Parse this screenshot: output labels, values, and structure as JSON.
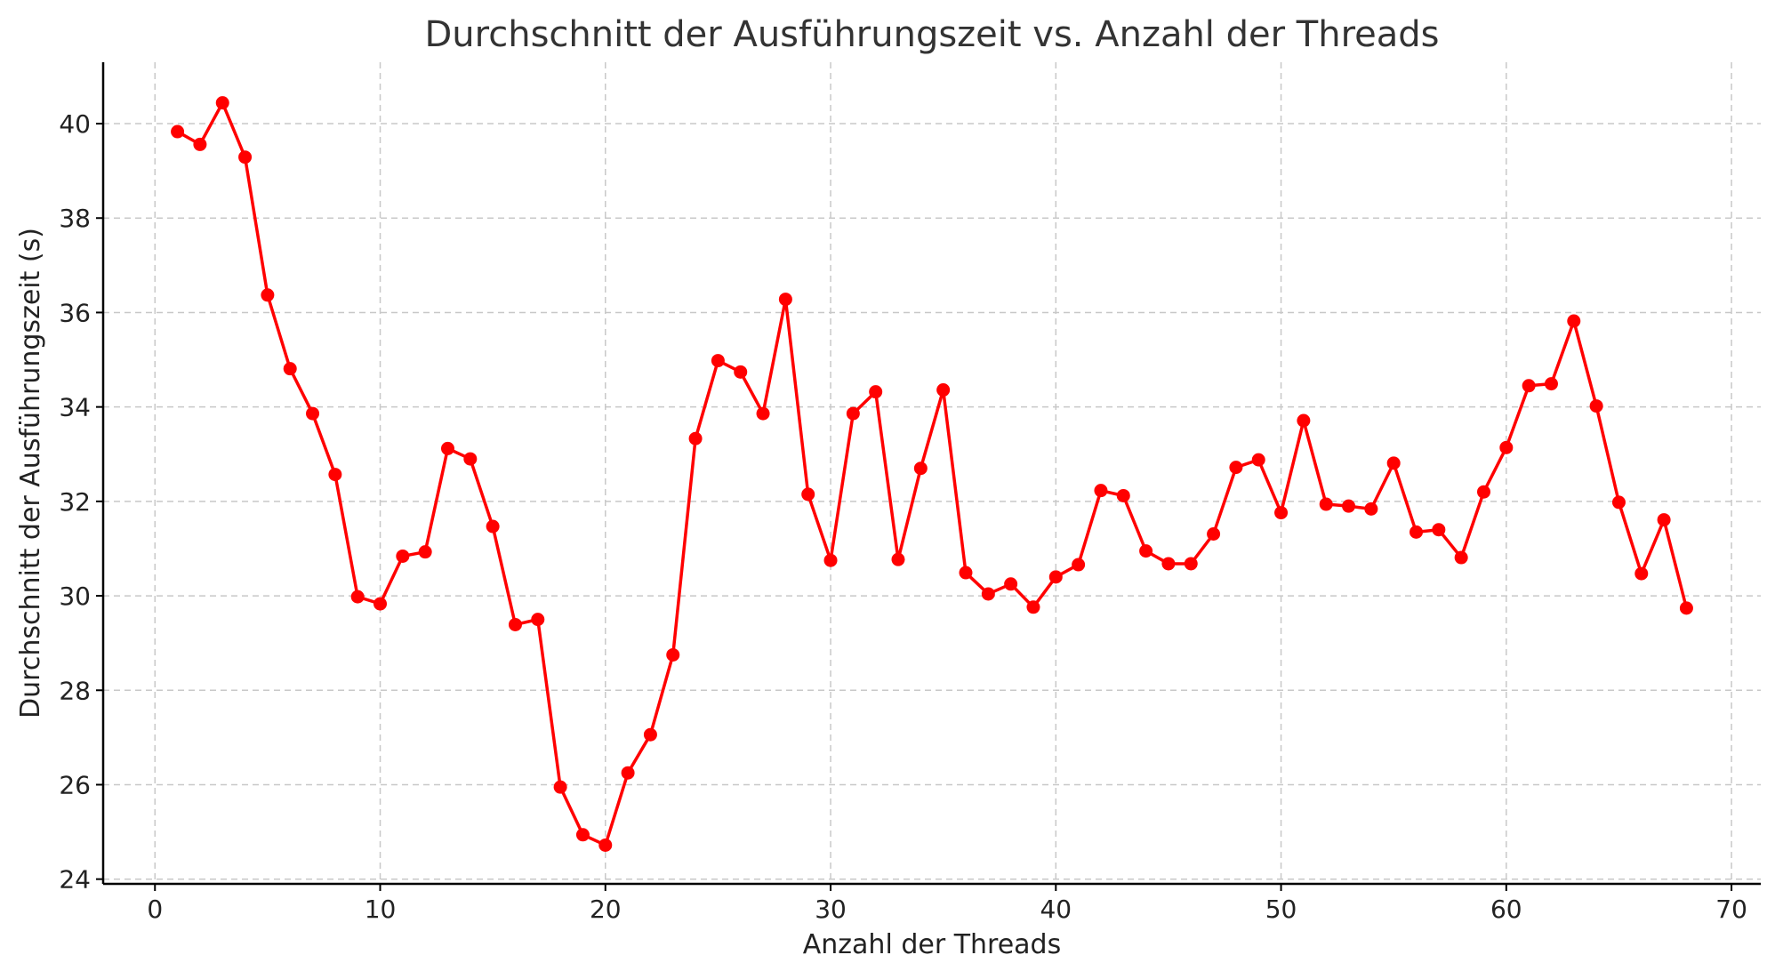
{
  "chart_data": {
    "type": "line",
    "title": "Durchschnitt der Ausführungszeit vs. Anzahl der Threads",
    "xlabel": "Anzahl der Threads",
    "ylabel": "Durchschnitt der Ausführungszeit (s)",
    "xlim": [
      -2.3,
      71.3
    ],
    "ylim": [
      23.9,
      41.3
    ],
    "xticks": [
      0,
      10,
      20,
      30,
      40,
      50,
      60,
      70
    ],
    "yticks": [
      24,
      26,
      28,
      30,
      32,
      34,
      36,
      38,
      40
    ],
    "grid": true,
    "color": "#ff0000",
    "series": [
      {
        "x": [
          1,
          2,
          3,
          4,
          5,
          6,
          7,
          8,
          9,
          10,
          11,
          12,
          13,
          14,
          15,
          16,
          17,
          18,
          19,
          20,
          21,
          22,
          23,
          24,
          25,
          26,
          27,
          28,
          29,
          30,
          31,
          32,
          33,
          34,
          35,
          36,
          37,
          38,
          39,
          40,
          41,
          42,
          43,
          44,
          45,
          46,
          47,
          48,
          49,
          50,
          51,
          52,
          53,
          54,
          55,
          56,
          57,
          58,
          59,
          60,
          61,
          62,
          63,
          64,
          65,
          66,
          67,
          68
        ],
        "y": [
          39.83,
          39.56,
          40.44,
          39.29,
          36.37,
          34.81,
          33.86,
          32.57,
          29.98,
          29.83,
          30.84,
          30.93,
          33.12,
          32.9,
          31.47,
          29.39,
          29.5,
          25.95,
          24.94,
          24.72,
          26.25,
          27.06,
          28.75,
          33.33,
          34.98,
          34.74,
          33.86,
          36.28,
          32.15,
          30.75,
          33.86,
          34.32,
          30.77,
          32.7,
          34.36,
          30.49,
          30.04,
          30.25,
          29.76,
          30.4,
          30.66,
          32.23,
          32.12,
          30.95,
          30.68,
          30.68,
          31.31,
          32.72,
          32.88,
          31.76,
          33.71,
          31.94,
          31.9,
          31.84,
          32.81,
          31.35,
          31.4,
          30.81,
          32.2,
          33.14,
          34.45,
          34.49,
          35.82,
          34.02,
          31.98,
          30.47,
          31.61,
          29.74
        ]
      }
    ]
  }
}
